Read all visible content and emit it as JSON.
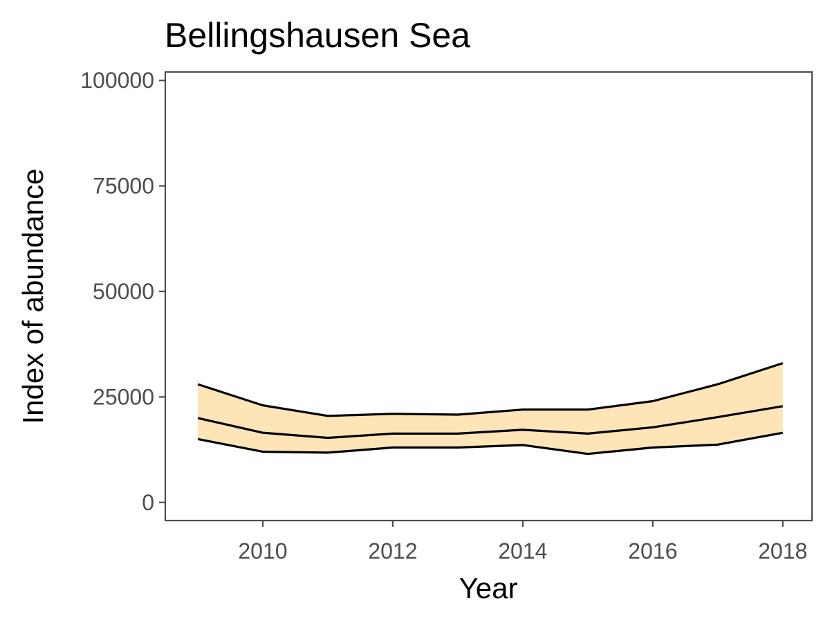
{
  "chart_data": {
    "type": "area",
    "title": "Bellingshausen Sea",
    "xlabel": "Year",
    "ylabel": "Index of abundance",
    "x": [
      2009,
      2010,
      2011,
      2012,
      2013,
      2014,
      2015,
      2016,
      2017,
      2018
    ],
    "series": [
      {
        "role": "upper",
        "values": [
          28000,
          23000,
          20500,
          21000,
          20800,
          22000,
          22000,
          24000,
          28000,
          33000
        ]
      },
      {
        "role": "estimate",
        "values": [
          20000,
          16500,
          15300,
          16300,
          16300,
          17200,
          16300,
          17800,
          20200,
          22800
        ]
      },
      {
        "role": "lower",
        "values": [
          15000,
          12000,
          11800,
          13000,
          13000,
          13600,
          11500,
          13000,
          13700,
          16500
        ]
      }
    ],
    "xlim": [
      2008.5,
      2018.45
    ],
    "ylim": [
      -4300,
      102000
    ],
    "xticks": [
      "2010",
      "2012",
      "2014",
      "2016",
      "2018"
    ],
    "yticks": [
      "0",
      "25000",
      "50000",
      "75000",
      "100000"
    ],
    "band_color": "#fde5b7",
    "line_color": "#000000",
    "grid": false,
    "legend": "none"
  }
}
